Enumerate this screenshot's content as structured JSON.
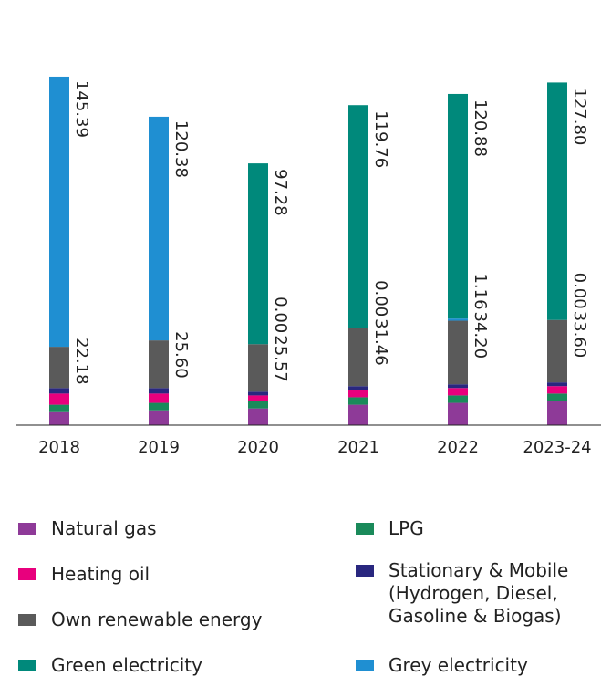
{
  "chart_data": {
    "type": "bar",
    "stacked": true,
    "categories": [
      "2018",
      "2019",
      "2020",
      "2021",
      "2022",
      "2023-24"
    ],
    "ylim": [
      0,
      190
    ],
    "series": [
      {
        "name": "Natural gas",
        "color": "#8e3a98",
        "values": [
          7,
          8,
          9,
          11,
          12,
          13
        ]
      },
      {
        "name": "LPG",
        "color": "#1a8a5a",
        "values": [
          4,
          4,
          4,
          4,
          4,
          4
        ]
      },
      {
        "name": "Heating oil",
        "color": "#e8007d",
        "values": [
          6,
          5,
          3,
          4,
          4,
          4
        ]
      },
      {
        "name": "Stationary & Mobile (Hydrogen, Diesel, Gasoline & Biogas)",
        "color": "#29277f",
        "values": [
          3,
          3,
          2,
          2,
          2,
          2
        ]
      },
      {
        "name": "Own renewable energy",
        "color": "#5a5a5a",
        "values": [
          22.18,
          25.6,
          25.57,
          31.46,
          34.2,
          33.6
        ],
        "value_labels": [
          "22.18",
          "25.60",
          "25.57",
          "31.46",
          "34.20",
          "33.60"
        ]
      },
      {
        "name": "Grey electricity",
        "color": "#1f8fd2",
        "values": [
          145.39,
          120.38,
          0,
          0,
          1.16,
          0
        ],
        "value_labels": [
          "145.39",
          "120.38",
          "0.00",
          "0.00",
          "1.16",
          "0.00"
        ]
      },
      {
        "name": "Green electricity",
        "color": "#00897b",
        "values": [
          null,
          null,
          97.28,
          119.76,
          120.88,
          127.8
        ],
        "value_labels": [
          null,
          null,
          "97.28",
          "119.76",
          "120.88",
          "127.80"
        ]
      }
    ]
  }
}
